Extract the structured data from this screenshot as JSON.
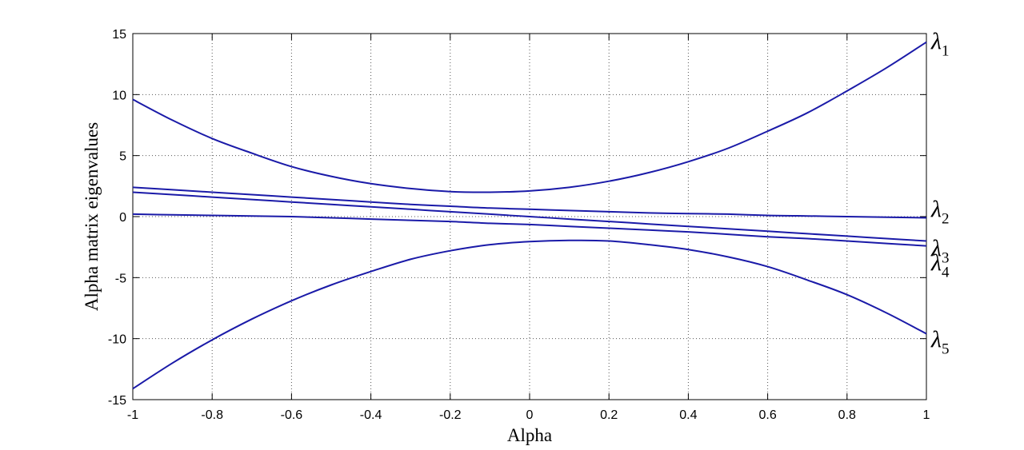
{
  "chart_data": {
    "type": "line",
    "title": "",
    "xlabel": "Alpha",
    "ylabel": "Alpha matrix eigenvalues",
    "xlim": [
      -1,
      1
    ],
    "ylim": [
      -15,
      15
    ],
    "x_ticks": [
      -1,
      -0.8,
      -0.6,
      -0.4,
      -0.2,
      0,
      0.2,
      0.4,
      0.6,
      0.8,
      1
    ],
    "x_tick_labels": [
      "-1",
      "-0.8",
      "-0.6",
      "-0.4",
      "-0.2",
      "0",
      "0.2",
      "0.4",
      "0.6",
      "0.8",
      "1"
    ],
    "y_ticks": [
      15,
      10,
      5,
      0,
      -5,
      -10,
      -15
    ],
    "y_tick_labels": [
      "15",
      "10",
      "5",
      "0",
      "-5",
      "-10",
      "-15"
    ],
    "grid": true,
    "line_color": "#1a1aa8",
    "x": [
      -1,
      -0.9,
      -0.8,
      -0.7,
      -0.6,
      -0.5,
      -0.4,
      -0.3,
      -0.2,
      -0.1,
      0,
      0.1,
      0.2,
      0.3,
      0.4,
      0.5,
      0.6,
      0.7,
      0.8,
      0.9,
      1
    ],
    "series": [
      {
        "name": "λ1",
        "label_symbol": "λ",
        "label_sub": "1",
        "values": [
          9.6,
          7.9,
          6.4,
          5.2,
          4.1,
          3.3,
          2.7,
          2.3,
          2.05,
          2.0,
          2.1,
          2.4,
          2.9,
          3.6,
          4.5,
          5.6,
          7.0,
          8.5,
          10.3,
          12.2,
          14.3
        ]
      },
      {
        "name": "λ2",
        "label_symbol": "λ",
        "label_sub": "2",
        "values": [
          2.4,
          2.2,
          2.0,
          1.8,
          1.6,
          1.4,
          1.2,
          1.0,
          0.85,
          0.7,
          0.6,
          0.5,
          0.4,
          0.3,
          0.25,
          0.2,
          0.1,
          0.05,
          0.0,
          -0.05,
          -0.1
        ]
      },
      {
        "name": "λ3",
        "label_symbol": "λ",
        "label_sub": "3",
        "values": [
          2.0,
          1.8,
          1.6,
          1.4,
          1.2,
          1.0,
          0.8,
          0.6,
          0.4,
          0.2,
          0.0,
          -0.2,
          -0.4,
          -0.6,
          -0.8,
          -1.0,
          -1.2,
          -1.4,
          -1.6,
          -1.8,
          -2.0
        ]
      },
      {
        "name": "λ4",
        "label_symbol": "λ",
        "label_sub": "4",
        "values": [
          0.2,
          0.15,
          0.1,
          0.05,
          0.0,
          -0.1,
          -0.2,
          -0.3,
          -0.4,
          -0.55,
          -0.65,
          -0.8,
          -0.95,
          -1.1,
          -1.25,
          -1.45,
          -1.65,
          -1.8,
          -2.0,
          -2.2,
          -2.4
        ]
      },
      {
        "name": "λ5",
        "label_symbol": "λ",
        "label_sub": "5",
        "values": [
          -14.1,
          -12.0,
          -10.1,
          -8.4,
          -6.9,
          -5.6,
          -4.5,
          -3.5,
          -2.8,
          -2.3,
          -2.05,
          -1.95,
          -2.0,
          -2.3,
          -2.7,
          -3.3,
          -4.1,
          -5.2,
          -6.4,
          -7.9,
          -9.6
        ]
      }
    ]
  }
}
